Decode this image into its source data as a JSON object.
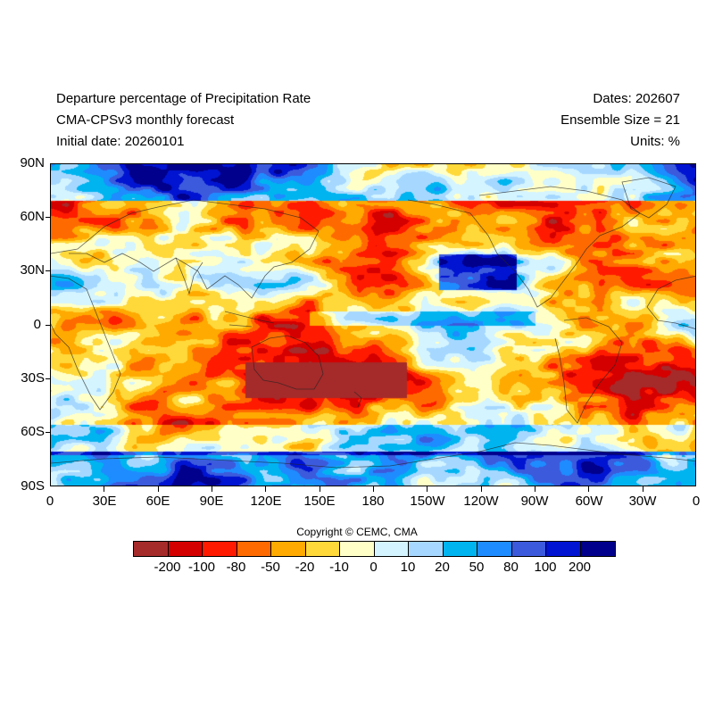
{
  "header": {
    "title": "Departure percentage of Precipitation Rate",
    "subtitle": "CMA-CPSv3 monthly forecast",
    "initial_date": "Initial date: 20260101",
    "dates": "Dates: 202607",
    "ensemble": "Ensemble Size = 21",
    "units": "Units: %"
  },
  "map": {
    "projection": "cylindrical equidistant",
    "lat_labels": [
      "90N",
      "60N",
      "30N",
      "0",
      "30S",
      "60S",
      "90S"
    ],
    "lon_labels": [
      "0",
      "30E",
      "60E",
      "90E",
      "120E",
      "150E",
      "180",
      "150W",
      "120W",
      "90W",
      "60W",
      "30W",
      "0"
    ],
    "field": "precipitation rate departure percentage"
  },
  "copyright": "Copyright © CEMC, CMA",
  "colorbar": {
    "colors": [
      "#a52a2a",
      "#d40000",
      "#ff1a00",
      "#ff6a00",
      "#ffaa00",
      "#ffd83a",
      "#ffffc8",
      "#d4f4ff",
      "#a6d8ff",
      "#00b4f0",
      "#1e8cff",
      "#3c5adc",
      "#0014d2",
      "#00008c"
    ],
    "labels": [
      "-200",
      "-100",
      "-80",
      "-50",
      "-20",
      "-10",
      "0",
      "10",
      "20",
      "50",
      "80",
      "100",
      "200"
    ]
  }
}
